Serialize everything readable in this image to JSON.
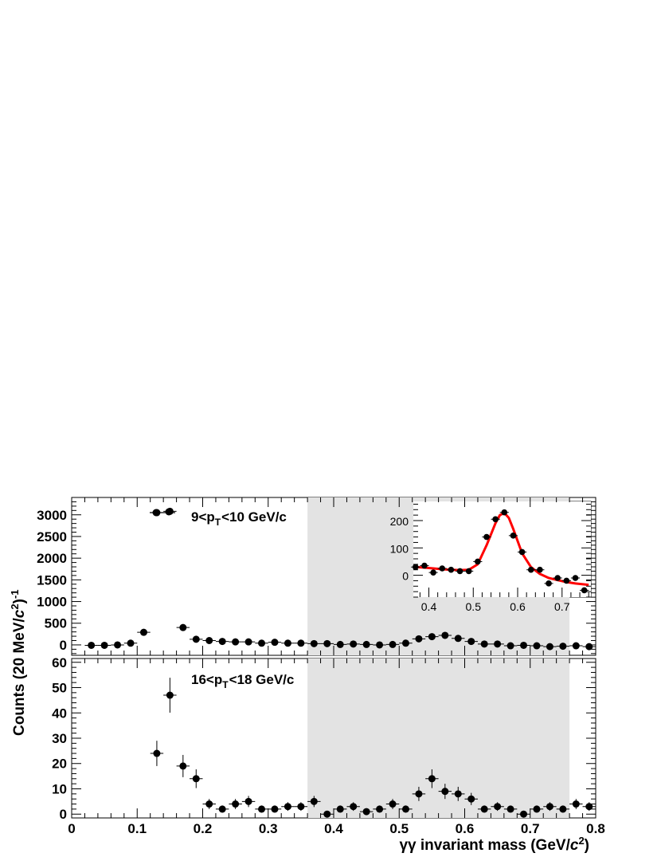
{
  "colors": {
    "marker": "#000000",
    "band": "#e3e3e3",
    "fit": "#ff0000"
  },
  "xlabel": "γγ invariant mass (GeV/c²)",
  "xlabel_parts": {
    "main": "γγ invariant mass (GeV/",
    "c": "c",
    "sup": "2",
    "close": ")"
  },
  "ylabel_parts": {
    "main": "Counts (20 MeV/",
    "c": "c",
    "sup2": "2",
    "close": ")",
    "sup": "-1"
  },
  "top_label": {
    "prefix": "9<p",
    "sub": "T",
    "suffix": "<10 GeV/c"
  },
  "bottom_label": {
    "prefix": "16<p",
    "sub": "T",
    "suffix": "<18 GeV/c"
  },
  "chart_data": [
    {
      "type": "scatter",
      "name": "9<pT<10 GeV/c",
      "x": [
        0.03,
        0.05,
        0.07,
        0.09,
        0.11,
        0.13,
        0.15,
        0.17,
        0.19,
        0.21,
        0.23,
        0.25,
        0.27,
        0.29,
        0.31,
        0.33,
        0.35,
        0.37,
        0.39,
        0.41,
        0.43,
        0.45,
        0.47,
        0.49,
        0.51,
        0.53,
        0.55,
        0.57,
        0.59,
        0.61,
        0.63,
        0.65,
        0.67,
        0.69,
        0.71,
        0.73,
        0.75,
        0.77,
        0.79
      ],
      "y": [
        -10,
        -10,
        0,
        40,
        290,
        3050,
        3080,
        400,
        130,
        100,
        80,
        70,
        70,
        40,
        60,
        40,
        40,
        30,
        30,
        10,
        20,
        10,
        0,
        10,
        40,
        140,
        190,
        220,
        150,
        80,
        20,
        20,
        -20,
        -10,
        -20,
        -40,
        -30,
        -20,
        -40
      ],
      "xlim": [
        0,
        0.8
      ],
      "ylim": [
        -240,
        3400
      ],
      "yticks": [
        0,
        500,
        1000,
        1500,
        2000,
        2500,
        3000
      ],
      "xticks": [
        0,
        0.1,
        0.2,
        0.3,
        0.4,
        0.5,
        0.6,
        0.7,
        0.8
      ],
      "shaded_x_range": [
        0.36,
        0.76
      ]
    },
    {
      "type": "scatter",
      "name": "inset",
      "x": [
        0.37,
        0.39,
        0.41,
        0.43,
        0.45,
        0.47,
        0.49,
        0.51,
        0.53,
        0.55,
        0.57,
        0.59,
        0.61,
        0.63,
        0.65,
        0.67,
        0.69,
        0.71,
        0.73,
        0.75
      ],
      "y": [
        30,
        35,
        10,
        25,
        20,
        15,
        15,
        50,
        140,
        205,
        230,
        145,
        85,
        20,
        20,
        -30,
        -10,
        -20,
        -10,
        -55
      ],
      "fit_curve": {
        "x": [
          0.37,
          0.39,
          0.41,
          0.43,
          0.45,
          0.47,
          0.49,
          0.51,
          0.53,
          0.55,
          0.56,
          0.57,
          0.58,
          0.59,
          0.61,
          0.63,
          0.65,
          0.67,
          0.69,
          0.71,
          0.73,
          0.76
        ],
        "y": [
          30,
          28,
          25,
          22,
          20,
          19,
          20,
          40,
          110,
          190,
          220,
          228,
          210,
          170,
          80,
          30,
          5,
          -10,
          -18,
          -25,
          -30,
          -35
        ]
      },
      "xlim": [
        0.365,
        0.765
      ],
      "ylim": [
        -80,
        270
      ],
      "xticks": [
        0.4,
        0.5,
        0.6,
        0.7
      ],
      "yticks": [
        0,
        100,
        200
      ]
    },
    {
      "type": "scatter",
      "name": "16<pT<18 GeV/c",
      "x": [
        0.13,
        0.15,
        0.17,
        0.19,
        0.21,
        0.23,
        0.25,
        0.27,
        0.29,
        0.31,
        0.33,
        0.35,
        0.37,
        0.39,
        0.41,
        0.43,
        0.45,
        0.47,
        0.49,
        0.51,
        0.53,
        0.55,
        0.57,
        0.59,
        0.61,
        0.63,
        0.65,
        0.67,
        0.69,
        0.71,
        0.73,
        0.75,
        0.77,
        0.79
      ],
      "y": [
        24,
        47,
        19,
        14,
        4,
        2,
        4,
        5,
        2,
        2,
        3,
        3,
        5,
        0,
        2,
        3,
        1,
        2,
        4,
        2,
        8,
        14,
        9,
        8,
        6,
        2,
        3,
        2,
        0,
        2,
        3,
        2,
        4,
        3
      ],
      "err": [
        5,
        6.9,
        4.4,
        3.7,
        2,
        1.4,
        2,
        2.2,
        1.4,
        1.4,
        1.7,
        1.7,
        2.2,
        1,
        1.4,
        1.7,
        1,
        1.4,
        2,
        1.4,
        2.8,
        3.7,
        3,
        2.8,
        2.4,
        1.4,
        1.7,
        1.4,
        1,
        1.4,
        1.7,
        1.4,
        2,
        1.7
      ],
      "xlim": [
        0,
        0.8
      ],
      "ylim": [
        -1.5,
        61.5
      ],
      "yticks": [
        0,
        10,
        20,
        30,
        40,
        50,
        60
      ],
      "xticks": [
        0,
        0.1,
        0.2,
        0.3,
        0.4,
        0.5,
        0.6,
        0.7,
        0.8
      ],
      "shaded_x_range": [
        0.36,
        0.76
      ]
    }
  ]
}
